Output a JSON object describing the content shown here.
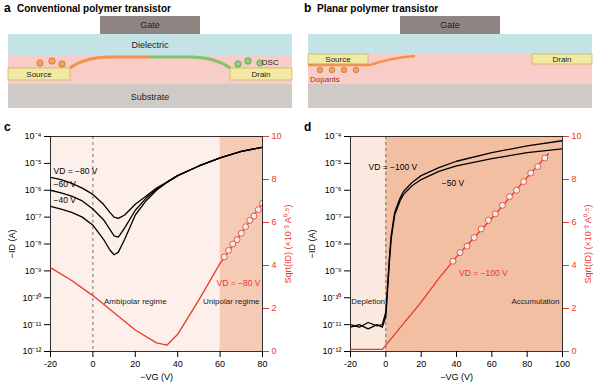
{
  "diagrams": [
    {
      "panel": "a",
      "title": "Conventional polymer transistor",
      "labels": {
        "gate": "Gate",
        "dielectric": "Dielectric",
        "osc": "OSC",
        "source": "Source",
        "drain": "Drain",
        "substrate": "Substrate"
      }
    },
    {
      "panel": "b",
      "title": "Planar polymer transistor",
      "labels": {
        "gate": "Gate",
        "source": "Source",
        "drain": "Drain",
        "dopants": "Dopants"
      }
    }
  ],
  "chart_data": [
    {
      "panel": "c",
      "type": "line",
      "log": "y",
      "xlabel": "−VG (V)",
      "ylabel": "−ID (A)",
      "y2label": "Sqrt(ID) (×10⁻³ A⁰·⁵)",
      "xlim": [
        -20,
        80
      ],
      "xticks": [
        -20,
        0,
        20,
        40,
        60,
        80
      ],
      "ylim": [
        1e-12,
        0.0001
      ],
      "yticks": [
        {
          "value": 1e-12,
          "label": "10⁻¹²"
        },
        {
          "value": 1e-11,
          "label": "10⁻¹¹"
        },
        {
          "value": 1e-10,
          "label": "10⁻¹⁰"
        },
        {
          "value": 1e-09,
          "label": "10⁻⁹"
        },
        {
          "value": 1e-08,
          "label": "10⁻⁸"
        },
        {
          "value": 1e-07,
          "label": "10⁻⁷"
        },
        {
          "value": 1e-06,
          "label": "10⁻⁶"
        },
        {
          "value": 1e-05,
          "label": "10⁻⁵"
        },
        {
          "value": 0.0001,
          "label": "10⁻⁴"
        }
      ],
      "y2lim": [
        0,
        10
      ],
      "y2ticks": [
        0,
        2,
        4,
        6,
        8,
        10
      ],
      "vline": 0,
      "regions": [
        {
          "label": "Ambipolar regime",
          "x1": -20,
          "x2": 60,
          "color": "#fdf0ea"
        },
        {
          "label": "Unipolar regime",
          "x1": 60,
          "x2": 80,
          "color": "#f6cbb5"
        }
      ],
      "series": [
        {
          "name": "VD = −80 V",
          "color": "#000000",
          "line_style": "solid",
          "x": [
            -20,
            -15,
            -10,
            -5,
            0,
            5,
            8,
            10,
            12,
            15,
            20,
            25,
            30,
            35,
            40,
            50,
            60,
            70,
            80
          ],
          "values": [
            3e-06,
            2.5e-06,
            1.8e-06,
            1.2e-06,
            7e-07,
            3e-07,
            1.5e-07,
            1e-07,
            9e-08,
            1.2e-07,
            3e-07,
            6e-07,
            1.2e-06,
            2e-06,
            3.5e-06,
            8e-06,
            1.6e-05,
            2.8e-05,
            4e-05
          ]
        },
        {
          "name": "−60 V",
          "color": "#000000",
          "line_style": "solid",
          "x": [
            -20,
            -15,
            -10,
            -5,
            0,
            5,
            8,
            10,
            12,
            15,
            20,
            25,
            30,
            35,
            40,
            50,
            60,
            70,
            80
          ],
          "values": [
            1e-06,
            8e-07,
            6e-07,
            4e-07,
            2e-07,
            8e-08,
            3.5e-08,
            2e-08,
            1.8e-08,
            4e-08,
            1.8e-07,
            5e-07,
            1.1e-06,
            2e-06,
            3.5e-06,
            8e-06,
            1.6e-05,
            2.8e-05,
            4e-05
          ]
        },
        {
          "name": "−40 V",
          "color": "#000000",
          "line_style": "solid",
          "x": [
            -20,
            -15,
            -10,
            -5,
            0,
            5,
            8,
            10,
            12,
            15,
            20,
            25,
            30,
            35,
            40,
            50,
            60,
            70,
            80
          ],
          "values": [
            2.5e-07,
            2e-07,
            1.5e-07,
            1e-07,
            5e-08,
            1.5e-08,
            6e-09,
            4e-09,
            5e-09,
            1.5e-08,
            1.2e-07,
            4e-07,
            1e-06,
            2e-06,
            3.5e-06,
            8e-06,
            1.6e-05,
            2.8e-05,
            4e-05
          ]
        },
        {
          "axis": "y2",
          "color": "#e8392a",
          "line_style": "solid",
          "x": [
            -20,
            -10,
            0,
            10,
            20,
            30,
            35,
            40,
            50,
            60,
            70,
            80
          ],
          "values": [
            3.9,
            3.3,
            2.6,
            1.8,
            1.0,
            0.4,
            0.3,
            0.8,
            2.4,
            4.1,
            5.5,
            6.9
          ]
        },
        {
          "name": "VD = −80 V",
          "axis": "y2",
          "color": "#e8392a",
          "marker": "circle",
          "line_style": "none",
          "x": [
            62,
            64,
            66,
            68,
            70,
            72,
            74,
            76,
            78,
            80
          ],
          "values": [
            4.4,
            4.7,
            5.0,
            5.2,
            5.5,
            5.8,
            6.1,
            6.3,
            6.6,
            6.9
          ]
        }
      ]
    },
    {
      "panel": "d",
      "type": "line",
      "log": "y",
      "xlabel": "−VG (V)",
      "ylabel": "−ID (A)",
      "y2label": "Sqrt(ID) (×10⁻³ A⁰·⁵)",
      "xlim": [
        -20,
        100
      ],
      "xticks": [
        -20,
        0,
        20,
        40,
        60,
        80,
        100
      ],
      "ylim": [
        1e-12,
        0.0001
      ],
      "yticks": [
        {
          "value": 1e-12,
          "label": "10⁻¹²"
        },
        {
          "value": 1e-11,
          "label": "10⁻¹¹"
        },
        {
          "value": 1e-10,
          "label": "10⁻¹⁰"
        },
        {
          "value": 1e-09,
          "label": "10⁻⁹"
        },
        {
          "value": 1e-08,
          "label": "10⁻⁸"
        },
        {
          "value": 1e-07,
          "label": "10⁻⁷"
        },
        {
          "value": 1e-06,
          "label": "10⁻⁶"
        },
        {
          "value": 1e-05,
          "label": "10⁻⁵"
        },
        {
          "value": 0.0001,
          "label": "10⁻⁴"
        }
      ],
      "y2lim": [
        0,
        10
      ],
      "y2ticks": [
        0,
        2,
        4,
        6,
        8,
        10
      ],
      "vline": 0,
      "regions": [
        {
          "label": "Depletion",
          "x1": -20,
          "x2": 0,
          "color": "#fbe9df"
        },
        {
          "label": "Accumulation",
          "x1": 0,
          "x2": 100,
          "color": "#f2bfa3"
        }
      ],
      "series": [
        {
          "name": "VD = −100 V",
          "color": "#000000",
          "line_style": "solid",
          "x": [
            -20,
            -15,
            -10,
            -5,
            -2,
            0,
            1,
            2,
            3,
            5,
            8,
            10,
            15,
            20,
            30,
            40,
            60,
            80,
            100
          ],
          "values": [
            1e-11,
            8e-12,
            1.2e-11,
            9e-12,
            1e-11,
            3e-11,
            3e-10,
            3e-09,
            2e-08,
            1.5e-07,
            5e-07,
            9e-07,
            2e-06,
            3.5e-06,
            7e-06,
            1.2e-05,
            2.5e-05,
            4.5e-05,
            7e-05
          ]
        },
        {
          "name": "−50 V",
          "color": "#000000",
          "line_style": "solid",
          "x": [
            -20,
            -15,
            -10,
            -5,
            -2,
            0,
            1,
            2,
            3,
            5,
            8,
            10,
            15,
            20,
            30,
            40,
            60,
            80,
            100
          ],
          "values": [
            8e-12,
            1e-11,
            7e-12,
            1e-11,
            8e-12,
            2e-11,
            2e-10,
            2e-09,
            1.5e-08,
            1.2e-07,
            4e-07,
            7e-07,
            1.5e-06,
            2.5e-06,
            5e-06,
            8e-06,
            1.5e-05,
            2.5e-05,
            3.5e-05
          ]
        },
        {
          "axis": "y2",
          "color": "#e8392a",
          "line_style": "solid",
          "x": [
            -20,
            -10,
            -2,
            0,
            10,
            20,
            30,
            40,
            60,
            80,
            92
          ],
          "values": [
            0.1,
            0.1,
            0.1,
            0.3,
            1.3,
            2.3,
            3.4,
            4.4,
            6.2,
            8.1,
            9.2
          ]
        },
        {
          "name": "VD = −100 V",
          "axis": "y2",
          "color": "#e8392a",
          "marker": "circle",
          "line_style": "none",
          "x": [
            38,
            42,
            46,
            50,
            54,
            58,
            62,
            66,
            70,
            74,
            78,
            82,
            86,
            90
          ],
          "values": [
            4.2,
            4.6,
            4.9,
            5.3,
            5.7,
            6.1,
            6.4,
            6.8,
            7.2,
            7.5,
            7.9,
            8.3,
            8.6,
            9.0
          ]
        }
      ]
    }
  ]
}
